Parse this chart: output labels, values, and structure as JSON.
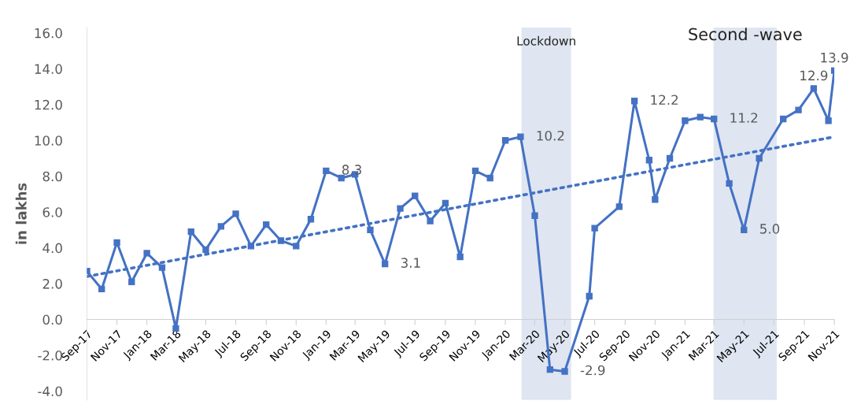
{
  "chart_data": {
    "type": "line",
    "ylabel": "in lakhs",
    "x": [
      "2017-09-01",
      "2017-10-01",
      "2017-11-01",
      "2017-12-01",
      "2018-01-01",
      "2018-02-01",
      "2018-03-01",
      "2018-04-01",
      "2018-05-01",
      "2018-06-01",
      "2018-07-01",
      "2018-08-01",
      "2018-09-01",
      "2018-10-01",
      "2018-11-01",
      "2018-12-01",
      "2019-01-01",
      "2019-02-01",
      "2019-03-01",
      "2019-04-01",
      "2019-05-01",
      "2019-06-01",
      "2019-07-01",
      "2019-08-01",
      "2019-09-01",
      "2019-10-01",
      "2019-11-01",
      "2019-12-01",
      "2020-01-01",
      "2020-02-01",
      "2020-03-01",
      "2020-04-01",
      "2020-05-01",
      "2020-06-20",
      "2020-07-01",
      "2020-08-20",
      "2020-09-20",
      "2020-10-20",
      "2020-11-01",
      "2020-12-01",
      "2021-01-01",
      "2021-02-01",
      "2021-03-01",
      "2021-04-01",
      "2021-05-01",
      "2021-06-01",
      "2021-07-20",
      "2021-08-20",
      "2021-09-20",
      "2021-10-20",
      "2021-11-01"
    ],
    "series": [
      {
        "color": "#4472c4",
        "marker": "square",
        "line_style": "solid",
        "values": [
          2.7,
          1.7,
          4.3,
          2.1,
          3.7,
          2.9,
          -0.5,
          4.9,
          3.9,
          5.2,
          5.9,
          4.1,
          5.3,
          4.4,
          4.1,
          5.6,
          8.3,
          7.9,
          8.1,
          5.0,
          3.1,
          6.2,
          6.9,
          5.5,
          6.5,
          3.5,
          8.3,
          7.9,
          10.0,
          10.2,
          5.8,
          -2.8,
          -2.9,
          1.3,
          5.1,
          6.3,
          12.2,
          8.9,
          6.7,
          9.0,
          11.1,
          11.3,
          11.2,
          7.6,
          5.0,
          9.0,
          11.2,
          11.7,
          12.9,
          11.1,
          13.9
        ],
        "value_labels": [
          null,
          null,
          null,
          null,
          null,
          null,
          null,
          null,
          null,
          null,
          null,
          null,
          null,
          null,
          null,
          null,
          "8.3",
          null,
          null,
          null,
          "3.1",
          null,
          null,
          null,
          null,
          null,
          null,
          null,
          null,
          "10.2",
          null,
          null,
          "-2.9",
          null,
          null,
          null,
          "12.2",
          null,
          null,
          null,
          null,
          null,
          "11.2",
          null,
          "5.0",
          null,
          null,
          null,
          "12.9",
          null,
          "13.9"
        ]
      },
      {
        "color": "#4472c4",
        "marker": "none",
        "line_style": "dotted",
        "x": [
          "2017-09-01",
          "2021-11-01"
        ],
        "values": [
          2.4,
          10.2
        ]
      }
    ],
    "bands": [
      {
        "axis": "x",
        "from": "2020-02-03",
        "to": "2020-05-14",
        "label": "Lockdown",
        "color": "#dfe5f1"
      },
      {
        "axis": "x",
        "from": "2021-02-28",
        "to": "2021-07-07",
        "label": "Second -wave",
        "color": "#dfe5f1"
      }
    ],
    "xlim": [
      "2017-09-01",
      "2021-11-01"
    ],
    "xticks": [
      {
        "value": "2017-09-01",
        "label": "Sep-17"
      },
      {
        "value": "2017-11-01",
        "label": "Nov-17"
      },
      {
        "value": "2018-01-01",
        "label": "Jan-18"
      },
      {
        "value": "2018-03-01",
        "label": "Mar-18"
      },
      {
        "value": "2018-05-01",
        "label": "May-18"
      },
      {
        "value": "2018-07-01",
        "label": "Jul-18"
      },
      {
        "value": "2018-09-01",
        "label": "Sep-18"
      },
      {
        "value": "2018-11-01",
        "label": "Nov-18"
      },
      {
        "value": "2019-01-01",
        "label": "Jan-19"
      },
      {
        "value": "2019-03-01",
        "label": "Mar-19"
      },
      {
        "value": "2019-05-01",
        "label": "May-19"
      },
      {
        "value": "2019-07-01",
        "label": "Jul-19"
      },
      {
        "value": "2019-09-01",
        "label": "Sep-19"
      },
      {
        "value": "2019-11-01",
        "label": "Nov-19"
      },
      {
        "value": "2020-01-01",
        "label": "Jan-20"
      },
      {
        "value": "2020-03-01",
        "label": "Mar-20"
      },
      {
        "value": "2020-05-01",
        "label": "May-20"
      },
      {
        "value": "2020-07-01",
        "label": "Jul-20"
      },
      {
        "value": "2020-09-01",
        "label": "Sep-20"
      },
      {
        "value": "2020-11-01",
        "label": "Nov-20"
      },
      {
        "value": "2021-01-01",
        "label": "Jan-21"
      },
      {
        "value": "2021-03-01",
        "label": "Mar-21"
      },
      {
        "value": "2021-05-01",
        "label": "May-21"
      },
      {
        "value": "2021-07-01",
        "label": "Jul-21"
      },
      {
        "value": "2021-09-01",
        "label": "Sep-21"
      },
      {
        "value": "2021-11-01",
        "label": "Nov-21"
      }
    ],
    "ylim": [
      -4.5,
      16.3
    ],
    "yticks": [
      {
        "value": -4,
        "label": "-4.0"
      },
      {
        "value": -2,
        "label": "-2.0"
      },
      {
        "value": 0,
        "label": "0.0"
      },
      {
        "value": 2,
        "label": "2.0"
      },
      {
        "value": 4,
        "label": "4.0"
      },
      {
        "value": 6,
        "label": "6.0"
      },
      {
        "value": 8,
        "label": "8.0"
      },
      {
        "value": 10,
        "label": "10.0"
      },
      {
        "value": 12,
        "label": "12.0"
      },
      {
        "value": 14,
        "label": "14.0"
      },
      {
        "value": 16,
        "label": "16.0"
      }
    ],
    "grid": false,
    "legend": false
  }
}
